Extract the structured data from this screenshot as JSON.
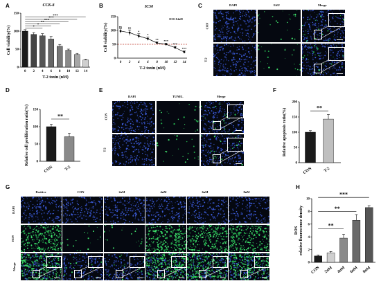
{
  "panels": {
    "A": "A",
    "B": "B",
    "C": "C",
    "D": "D",
    "E": "E",
    "F": "F",
    "G": "G",
    "H": "H"
  },
  "panel_c": {
    "columns": [
      "DAPI",
      "EdU",
      "Merge"
    ],
    "rows": [
      "CON",
      "T-2"
    ]
  },
  "panel_e": {
    "columns": [
      "DAPI",
      "TUNEL",
      "Merge"
    ],
    "rows": [
      "CON",
      "T-2"
    ]
  },
  "panel_g": {
    "columns": [
      "Positive",
      "CON",
      "2nM",
      "4nM",
      "6nM",
      "8nM"
    ],
    "rows": [
      "DAPI",
      "ROS",
      "Merge"
    ]
  },
  "colors": {
    "dapi_bg": "#0a1026",
    "edu_green": "#3fdc6a",
    "bar_dark": "#222222",
    "bar_mid": "#888888",
    "bar_light": "#bfbfbf",
    "ic50_line": "#c0392b"
  },
  "chart_data": [
    {
      "panel": "A",
      "type": "bar",
      "title": "CCK-8",
      "xlabel": "T-2 toxin (nM)",
      "ylabel": "Cell viability(%)",
      "categories": [
        "0",
        "2",
        "4",
        "6",
        "8",
        "10",
        "12",
        "14"
      ],
      "values": [
        100,
        91,
        87,
        78,
        58,
        47,
        35,
        20
      ],
      "errors": [
        4,
        5,
        6,
        7,
        5,
        3,
        3,
        2
      ],
      "ylim": [
        0,
        150
      ],
      "yticks": [
        "0",
        "50",
        "100",
        "150"
      ],
      "significance": [
        "*",
        "*",
        "**",
        "***",
        "***",
        "***"
      ]
    },
    {
      "panel": "B",
      "type": "line",
      "title": "IC50",
      "annotation": "IC50=8.4nM",
      "xlabel": "T-2 toxin (nM)",
      "ylabel": "Cell viability(%)",
      "x": [
        0,
        2,
        4,
        6,
        8,
        10,
        12,
        14
      ],
      "xticks": [
        "0",
        "2",
        "4",
        "6",
        "8",
        "10",
        "12",
        "14"
      ],
      "y": [
        98,
        92,
        80,
        70,
        55,
        50,
        38,
        22
      ],
      "errors": [
        8,
        10,
        8,
        6,
        4,
        4,
        4,
        4
      ],
      "labels": [
        "ns",
        "ns",
        "*",
        "*",
        "**",
        "***",
        "***",
        "***"
      ],
      "ic50_y": 50,
      "ylim": [
        0,
        150
      ],
      "yticks": [
        "0",
        "50",
        "100",
        "150"
      ]
    },
    {
      "panel": "D",
      "type": "bar",
      "ylabel": "Relative cell proliferation ratio(%)",
      "categories": [
        "CON",
        "T-2"
      ],
      "values": [
        100,
        71
      ],
      "errors": [
        7,
        10
      ],
      "ylim": [
        0,
        150
      ],
      "yticks": [
        "0",
        "50",
        "100",
        "150"
      ],
      "significance": "**"
    },
    {
      "panel": "F",
      "type": "bar",
      "ylabel": "Relative apoptosis ratio(%)",
      "categories": [
        "CON",
        "T-2"
      ],
      "values": [
        100,
        143
      ],
      "errors": [
        5,
        15
      ],
      "ylim": [
        0,
        200
      ],
      "yticks": [
        "0",
        "50",
        "100",
        "150",
        "200"
      ],
      "significance": "**"
    },
    {
      "panel": "H",
      "type": "bar",
      "ylabel": "ROS relative fluorescence density",
      "categories": [
        "CON",
        "2nM",
        "4nM",
        "6nM",
        "8nM"
      ],
      "values": [
        1.0,
        1.5,
        3.8,
        6.6,
        8.6
      ],
      "errors": [
        0.15,
        0.2,
        0.6,
        0.9,
        0.3
      ],
      "ylim": [
        0,
        10
      ],
      "yticks": [
        "0",
        "2",
        "4",
        "6",
        "8",
        "10"
      ],
      "significance": [
        "**",
        "**",
        "***"
      ]
    }
  ]
}
